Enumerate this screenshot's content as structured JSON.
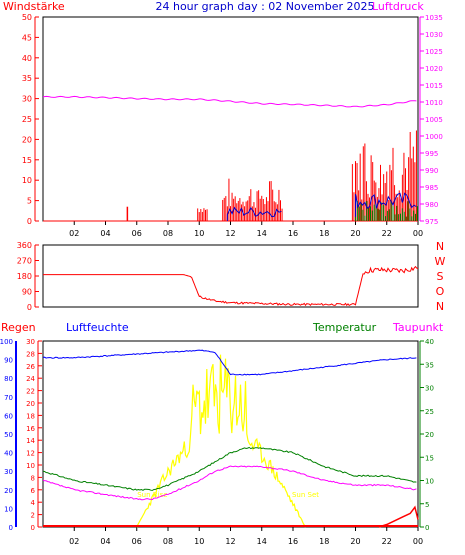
{
  "header": {
    "left_label": "Windstärke",
    "title": "24 hour graph day : 02 November 2025",
    "right_label": "Luftdruck"
  },
  "wind_panel": {
    "left_axis_ticks": [
      0,
      5,
      10,
      15,
      20,
      25,
      30,
      35,
      40,
      45,
      50
    ],
    "right_axis_ticks": [
      975,
      980,
      985,
      990,
      995,
      1000,
      1005,
      1010,
      1015,
      1020,
      1025,
      1030,
      1035
    ],
    "time_ticks": [
      "02",
      "04",
      "06",
      "08",
      "10",
      "12",
      "14",
      "16",
      "18",
      "20",
      "22",
      "00"
    ]
  },
  "direction_panel": {
    "left_axis_ticks": [
      0,
      90,
      180,
      270,
      360
    ],
    "compass_labels": [
      "N",
      "W",
      "S",
      "O",
      "N"
    ]
  },
  "lower_panel": {
    "label_regen": "Regen",
    "label_luftfeuchte": "Luftfeuchte",
    "label_temperatur": "Temperatur",
    "label_taupunkt": "Taupunkt",
    "regen_ticks": [
      0,
      2,
      4,
      6,
      8,
      10,
      12,
      14,
      16,
      18,
      20,
      22,
      24,
      26,
      28,
      30
    ],
    "feuchte_ticks": [
      0,
      10,
      20,
      30,
      40,
      50,
      60,
      70,
      80,
      90,
      100
    ],
    "temp_ticks": [
      0,
      5,
      10,
      15,
      20,
      25,
      30,
      35,
      40
    ],
    "sun_rise_label": "Sun Rise",
    "sun_set_label": "Sun Set",
    "time_ticks": [
      "02",
      "04",
      "06",
      "08",
      "10",
      "12",
      "14",
      "16",
      "18",
      "20",
      "22",
      "00"
    ]
  },
  "colors": {
    "wind": "#ff0000",
    "gust": "#0000cc",
    "wind_green": "#008000",
    "pressure": "#ff00ff",
    "direction": "#ff0000",
    "humidity": "#0000ff",
    "temperature": "#008000",
    "dewpoint": "#ff00ff",
    "solar": "#ffff00",
    "rain": "#ff0000"
  },
  "chart_data": [
    {
      "type": "line",
      "title": "24 hour graph day : 02 November 2025",
      "series": [
        {
          "name": "Luftdruck",
          "x": [
            0,
            2,
            4,
            6,
            8,
            10,
            12,
            14,
            16,
            18,
            20,
            22,
            24
          ],
          "values": [
            1011.5,
            1011.5,
            1011.3,
            1011.0,
            1010.8,
            1010.8,
            1010.2,
            1009.5,
            1009.3,
            1009.0,
            1008.6,
            1009.2,
            1010.5
          ]
        },
        {
          "name": "Windstärke",
          "x": [
            0,
            5.3,
            5.4,
            5.5,
            10,
            10.3,
            10.6,
            11,
            12,
            13,
            14,
            15,
            15.5,
            20,
            21,
            22,
            23,
            23.5,
            24
          ],
          "values": [
            0,
            0,
            3.5,
            0,
            0,
            3,
            5,
            0,
            7,
            8,
            9,
            8,
            0,
            10,
            14,
            13,
            15,
            20,
            14
          ]
        }
      ]
    },
    {
      "type": "line",
      "series": [
        {
          "name": "",
          "x": [
            0,
            2,
            4,
            6,
            8,
            9,
            9.5,
            10,
            11,
            12,
            14,
            16,
            18,
            20,
            20.5,
            21,
            22,
            23,
            24
          ],
          "values": [
            188,
            188,
            188,
            188,
            188,
            188,
            175,
            60,
            35,
            25,
            20,
            15,
            15,
            15,
            200,
            215,
            215,
            210,
            230
          ]
        }
      ],
      "ylim": [
        0,
        360
      ]
    },
    {
      "type": "line",
      "series": [
        {
          "name": "Luftfeuchte",
          "x": [
            0,
            2,
            4,
            6,
            8,
            10,
            11,
            12,
            13,
            14,
            16,
            18,
            20,
            22,
            24
          ],
          "values": [
            91,
            91,
            92,
            93,
            94,
            95,
            94,
            82,
            82,
            82,
            84,
            86,
            88,
            90,
            91
          ]
        },
        {
          "name": "Temperatur",
          "x": [
            0,
            2,
            4,
            6,
            7,
            8,
            10,
            11,
            12,
            13,
            14,
            16,
            18,
            20,
            22,
            24
          ],
          "values": [
            12,
            10,
            9,
            8,
            8,
            9,
            12,
            14,
            16,
            17,
            17,
            16,
            13,
            11,
            11,
            9.5
          ]
        },
        {
          "name": "Taupunkt",
          "x": [
            0,
            2,
            4,
            6,
            7,
            8,
            10,
            11,
            12,
            13,
            14,
            16,
            18,
            20,
            22,
            24
          ],
          "values": [
            10,
            8,
            7,
            6,
            6,
            7,
            10,
            12,
            13,
            13,
            13,
            12,
            10,
            9,
            9,
            8
          ]
        }
      ]
    }
  ]
}
